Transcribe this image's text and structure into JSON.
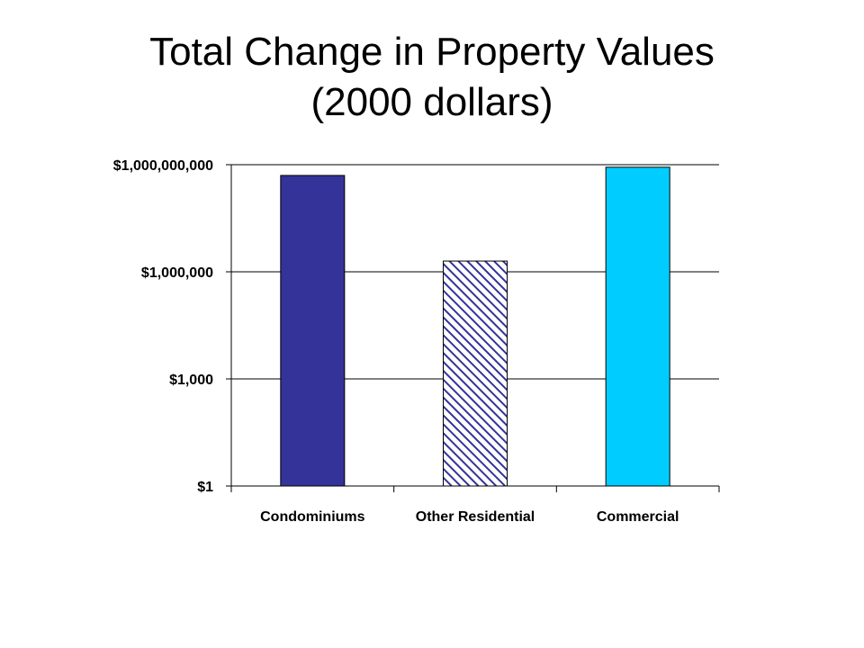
{
  "title": {
    "line1": "Total Change in Property Values",
    "line2": "(2000 dollars)"
  },
  "chart_data": {
    "type": "bar",
    "y_scale": "log",
    "ylim": [
      1,
      1000000000
    ],
    "yticks": [
      1,
      1000,
      1000000,
      1000000000
    ],
    "ytick_labels": [
      "$1",
      "$1,000",
      "$1,000,000",
      "$1,000,000,000"
    ],
    "categories": [
      "Condominiums",
      "Other Residential",
      "Commercial"
    ],
    "values": [
      500000000,
      2000000,
      850000000
    ],
    "bar_colors": [
      "#333399",
      "#333399",
      "#00CCFF"
    ],
    "bar_patterns": [
      "solid",
      "diagonal-hatch",
      "solid"
    ],
    "grid": true,
    "legend": "none"
  }
}
